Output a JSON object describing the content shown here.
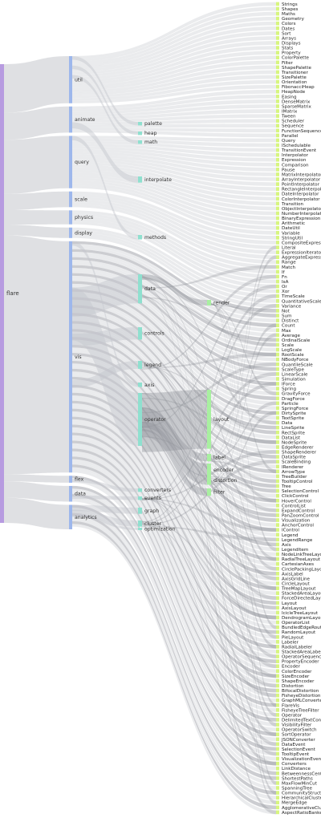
{
  "diagram": {
    "type": "sankey",
    "colors": {
      "root": "#b79be0",
      "level1": "#9db7ec",
      "level2": "#8fe0cf",
      "level3": "#a8f0a0",
      "leaf": "#d7f57f",
      "link": "#c4c6cc",
      "link_dark": "#8e9198"
    },
    "root": {
      "label": "flare"
    },
    "level1": [
      {
        "label": "util",
        "size": 54
      },
      {
        "label": "animate",
        "size": 30
      },
      {
        "label": "query",
        "size": 60
      },
      {
        "label": "scale",
        "size": 18
      },
      {
        "label": "physics",
        "size": 16
      },
      {
        "label": "display",
        "size": 12
      },
      {
        "label": "vis",
        "size": 265
      },
      {
        "label": "flex",
        "size": 8
      },
      {
        "label": "data",
        "size": 18
      },
      {
        "label": "analytics",
        "size": 28
      }
    ],
    "level2": [
      {
        "label": "palette",
        "size": 8
      },
      {
        "label": "heap",
        "size": 8
      },
      {
        "label": "math",
        "size": 8
      },
      {
        "label": "interpolate",
        "size": 14
      },
      {
        "label": "methods",
        "size": 10
      },
      {
        "label": "data",
        "size": 66
      },
      {
        "label": "controls",
        "size": 28
      },
      {
        "label": "legend",
        "size": 18
      },
      {
        "label": "axis",
        "size": 10
      },
      {
        "label": "operator",
        "size": 120
      },
      {
        "label": "converters",
        "size": 8
      },
      {
        "label": "events",
        "size": 8
      },
      {
        "label": "graph",
        "size": 14
      },
      {
        "label": "cluster",
        "size": 14
      },
      {
        "label": "optimization",
        "size": 4
      }
    ],
    "level3": [
      {
        "label": "render",
        "size": 6
      },
      {
        "label": "layout",
        "size": 64
      },
      {
        "label": "label",
        "size": 8
      },
      {
        "label": "encoder",
        "size": 14
      },
      {
        "label": "distortion",
        "size": 10
      },
      {
        "label": "filter",
        "size": 8
      }
    ],
    "leaves": [
      "Strings",
      "Shapes",
      "Maths",
      "Geometry",
      "Colors",
      "Dates",
      "Sort",
      "Arrays",
      "Displays",
      "Stats",
      "Property",
      "ColorPalette",
      "Filter",
      "ShapePalette",
      "Transitioner",
      "SizePalette",
      "Orientation",
      "FibonacciHeap",
      "HeapNode",
      "Easing",
      "DenseMatrix",
      "SparseMatrix",
      "IMatrix",
      "Tween",
      "Scheduler",
      "Sequence",
      "FunctionSequence",
      "Parallel",
      "Query",
      "ISchedulable",
      "TransitionEvent",
      "Interpolator",
      "Expression",
      "Comparison",
      "Pause",
      "MatrixInterpolator",
      "ArrayInterpolator",
      "PointInterpolator",
      "RectangleInterpolator",
      "DateInterpolator",
      "ColorInterpolator",
      "Transition",
      "ObjectInterpolator",
      "NumberInterpolator",
      "BinaryExpression",
      "Arithmetic",
      "DateUtil",
      "Variable",
      "StringUtil",
      "CompositeExpression",
      "Literal",
      "ExpressionIterator",
      "AggregateExpression",
      "Range",
      "Match",
      "If",
      "Fn",
      "IsA",
      "Or",
      "Xor",
      "TimeScale",
      "QuantitativeScale",
      "Variance",
      "Not",
      "Sum",
      "Distinct",
      "Count",
      "Max",
      "Average",
      "OrdinalScale",
      "Scale",
      "LogScale",
      "RootScale",
      "NBodyForce",
      "QuantileScale",
      "ScaleType",
      "LinearScale",
      "Simulation",
      "IForce",
      "Spring",
      "GravityForce",
      "DragForce",
      "Particle",
      "SpringForce",
      "DirtySprite",
      "TextSprite",
      "Data",
      "LineSprite",
      "RectSprite",
      "DataList",
      "NodeSprite",
      "EdgeRenderer",
      "ShapeRenderer",
      "DataSprite",
      "ScaleBinding",
      "IRenderer",
      "ArrowType",
      "TreeBuilder",
      "TooltipControl",
      "Tree",
      "SelectionControl",
      "ClickControl",
      "HoverControl",
      "ControlList",
      "ExpandControl",
      "PanZoomControl",
      "Visualization",
      "AnchorControl",
      "IControl",
      "Legend",
      "LegendRange",
      "Axis",
      "LegendItem",
      "NodeLinkTreeLayout",
      "RadialTreeLayout",
      "CartesianAxes",
      "CirclePackingLayout",
      "AxisLabel",
      "AxisGridLine",
      "CircleLayout",
      "TreeMapLayout",
      "StackedAreaLayout",
      "ForceDirectedLayout",
      "Layout",
      "AxisLayout",
      "IcicleTreeLayout",
      "DendrogramLayout",
      "OperatorList",
      "BundledEdgeRouter",
      "RandomLayout",
      "PieLayout",
      "Labeler",
      "RadialLabeler",
      "StackedAreaLabeler",
      "OperatorSequence",
      "PropertyEncoder",
      "Encoder",
      "ColorEncoder",
      "SizeEncoder",
      "ShapeEncoder",
      "Distortion",
      "BifocalDistortion",
      "FisheyeDistortion",
      "GraphMLConverter",
      "FlareVis",
      "FisheyeTreeFilter",
      "Operator",
      "DelimitedTextConverter",
      "VisibilityFilter",
      "OperatorSwitch",
      "SortOperator",
      "JSONConverter",
      "DataEvent",
      "SelectionEvent",
      "TooltipEvent",
      "VisualizationEvent",
      "Converters",
      "LinkDistance",
      "BetweennessCentrality",
      "ShortestPaths",
      "MaxFlowMinCut",
      "SpanningTree",
      "CommunityStructure",
      "HierarchicalCluster",
      "MergeEdge",
      "AgglomerativeCluster",
      "AspectRatioBanker"
    ]
  }
}
